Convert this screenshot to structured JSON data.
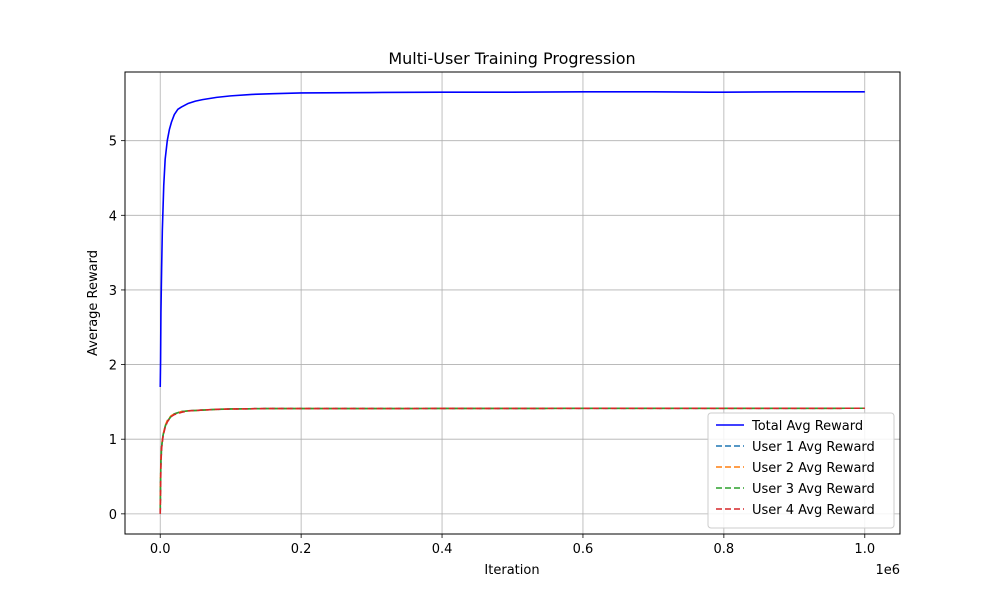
{
  "chart_data": {
    "type": "line",
    "title": "Multi-User Training Progression",
    "xlabel": "Iteration",
    "ylabel": "Average Reward",
    "x_offset_label": "1e6",
    "xlim": [
      -0.05,
      1.05
    ],
    "ylim": [
      -0.27,
      5.92
    ],
    "x_ticks": [
      0.0,
      0.2,
      0.4,
      0.6,
      0.8,
      1.0
    ],
    "x_tick_labels": [
      "0.0",
      "0.2",
      "0.4",
      "0.6",
      "0.8",
      "1.0"
    ],
    "y_ticks": [
      0,
      1,
      2,
      3,
      4,
      5
    ],
    "y_tick_labels": [
      "0",
      "1",
      "2",
      "3",
      "4",
      "5"
    ],
    "grid": true,
    "legend_position": "lower-right",
    "series": [
      {
        "name": "Total Avg Reward",
        "color": "#0000ff",
        "style": "solid",
        "x": [
          0.0,
          0.0005,
          0.001,
          0.002,
          0.003,
          0.005,
          0.007,
          0.01,
          0.013,
          0.016,
          0.02,
          0.025,
          0.03,
          0.04,
          0.05,
          0.06,
          0.08,
          0.1,
          0.13,
          0.16,
          0.2,
          0.3,
          0.4,
          0.5,
          0.6,
          0.7,
          0.78,
          0.8,
          0.9,
          1.0
        ],
        "y": [
          1.7,
          2.05,
          2.7,
          3.3,
          3.8,
          4.4,
          4.75,
          5.0,
          5.15,
          5.25,
          5.35,
          5.42,
          5.45,
          5.5,
          5.53,
          5.55,
          5.58,
          5.6,
          5.62,
          5.63,
          5.64,
          5.645,
          5.65,
          5.65,
          5.655,
          5.655,
          5.65,
          5.65,
          5.655,
          5.655
        ]
      },
      {
        "name": "User 1 Avg Reward",
        "color": "#1f77b4",
        "style": "dashed",
        "x": [
          0.0,
          0.0005,
          0.001,
          0.002,
          0.004,
          0.007,
          0.01,
          0.015,
          0.02,
          0.03,
          0.04,
          0.06,
          0.08,
          0.1,
          0.15,
          0.2,
          0.3,
          0.4,
          0.5,
          0.6,
          0.7,
          0.8,
          0.9,
          1.0
        ],
        "y": [
          0.02,
          0.4,
          0.7,
          0.9,
          1.05,
          1.17,
          1.24,
          1.3,
          1.34,
          1.37,
          1.38,
          1.39,
          1.4,
          1.405,
          1.41,
          1.41,
          1.41,
          1.412,
          1.412,
          1.414,
          1.414,
          1.414,
          1.414,
          1.415
        ]
      },
      {
        "name": "User 2 Avg Reward",
        "color": "#ff7f0e",
        "style": "dashed",
        "x": [
          0.0,
          0.0005,
          0.001,
          0.002,
          0.004,
          0.007,
          0.01,
          0.015,
          0.02,
          0.03,
          0.04,
          0.06,
          0.08,
          0.1,
          0.15,
          0.2,
          0.3,
          0.4,
          0.5,
          0.6,
          0.7,
          0.8,
          0.9,
          1.0
        ],
        "y": [
          0.1,
          0.5,
          0.75,
          0.92,
          1.06,
          1.18,
          1.25,
          1.31,
          1.34,
          1.37,
          1.38,
          1.39,
          1.4,
          1.405,
          1.41,
          1.41,
          1.41,
          1.412,
          1.412,
          1.414,
          1.414,
          1.414,
          1.414,
          1.415
        ]
      },
      {
        "name": "User 3 Avg Reward",
        "color": "#2ca02c",
        "style": "dashed",
        "x": [
          0.0,
          0.0005,
          0.001,
          0.002,
          0.004,
          0.007,
          0.01,
          0.015,
          0.02,
          0.03,
          0.04,
          0.06,
          0.08,
          0.1,
          0.15,
          0.2,
          0.3,
          0.4,
          0.5,
          0.6,
          0.7,
          0.8,
          0.9,
          1.0
        ],
        "y": [
          0.05,
          0.45,
          0.72,
          0.9,
          1.05,
          1.17,
          1.24,
          1.3,
          1.34,
          1.37,
          1.38,
          1.39,
          1.4,
          1.405,
          1.41,
          1.41,
          1.41,
          1.412,
          1.412,
          1.414,
          1.414,
          1.414,
          1.414,
          1.415
        ]
      },
      {
        "name": "User 4 Avg Reward",
        "color": "#d62728",
        "style": "dashed",
        "x": [
          0.0,
          0.0005,
          0.001,
          0.002,
          0.004,
          0.007,
          0.01,
          0.015,
          0.02,
          0.03,
          0.04,
          0.06,
          0.08,
          0.1,
          0.15,
          0.2,
          0.3,
          0.4,
          0.5,
          0.6,
          0.7,
          0.8,
          0.9,
          1.0
        ],
        "y": [
          0.0,
          0.35,
          0.68,
          0.88,
          1.04,
          1.16,
          1.23,
          1.3,
          1.33,
          1.36,
          1.38,
          1.39,
          1.4,
          1.405,
          1.41,
          1.41,
          1.41,
          1.412,
          1.412,
          1.414,
          1.414,
          1.414,
          1.414,
          1.415
        ]
      }
    ]
  }
}
